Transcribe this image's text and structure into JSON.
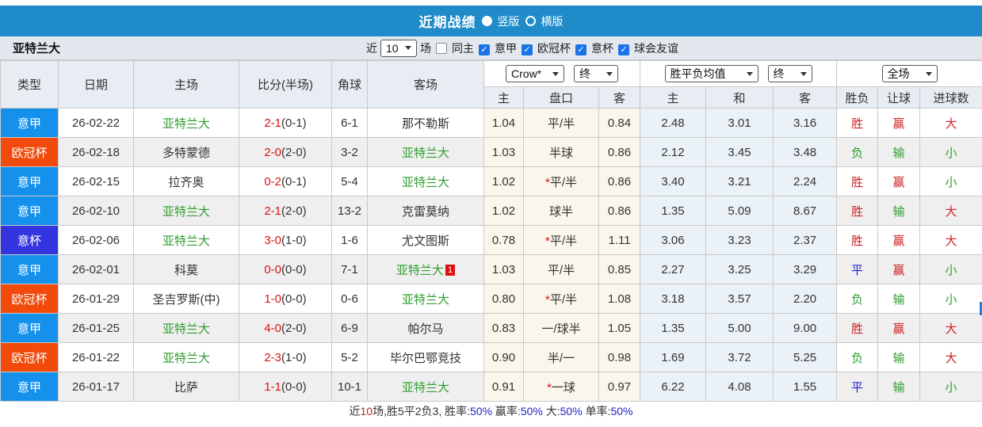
{
  "palette": {
    "red": "#cc2222",
    "green": "#2f9e2f",
    "blue": "#2222cc",
    "dark": "#333333"
  },
  "title_bar": {
    "title": "近期战绩",
    "radios": [
      {
        "label": "竖版",
        "selected": true
      },
      {
        "label": "横版",
        "selected": false
      }
    ]
  },
  "controls": {
    "team": "亚特兰大",
    "near_label": "近",
    "count_value": "10",
    "count_suffix": "场",
    "same_home_label": "同主",
    "same_home_checked": false,
    "league_filters": [
      {
        "label": "意甲",
        "checked": true
      },
      {
        "label": "欧冠杯",
        "checked": true
      },
      {
        "label": "意杯",
        "checked": true
      },
      {
        "label": "球会友谊",
        "checked": true
      }
    ]
  },
  "table": {
    "left_headers": [
      "类型",
      "日期",
      "主场",
      "比分(半场)",
      "角球",
      "客场"
    ],
    "selects": {
      "odds_source": "Crow*",
      "odds_time": "终",
      "avg_source": "胜平负均值",
      "avg_time": "终",
      "scope": "全场"
    },
    "sub_headers": [
      "主",
      "盘口",
      "客",
      "主",
      "和",
      "客",
      "胜负",
      "让球",
      "进球数"
    ],
    "rows": [
      {
        "type": "意甲",
        "type_color": "#1591ec",
        "date": "26-02-22",
        "home": "亚特兰大",
        "home_green": true,
        "score_ft": "2-1",
        "score_ht": "(0-1)",
        "corners": "6-1",
        "away": "那不勒斯",
        "away_green": false,
        "away_badge": "",
        "odds": {
          "home": "1.04",
          "handicap": "平/半",
          "star": false,
          "away": "0.84"
        },
        "avg": [
          "2.48",
          "3.01",
          "3.16"
        ],
        "result_wdl": {
          "text": "胜",
          "color": "red"
        },
        "result_handicap": {
          "text": "赢",
          "color": "red"
        },
        "result_goals": {
          "text": "大",
          "color": "red"
        }
      },
      {
        "type": "欧冠杯",
        "type_color": "#f14a0b",
        "date": "26-02-18",
        "home": "多特蒙德",
        "home_green": false,
        "score_ft": "2-0",
        "score_ht": "(2-0)",
        "corners": "3-2",
        "away": "亚特兰大",
        "away_green": true,
        "away_badge": "",
        "odds": {
          "home": "1.03",
          "handicap": "半球",
          "star": false,
          "away": "0.86"
        },
        "avg": [
          "2.12",
          "3.45",
          "3.48"
        ],
        "result_wdl": {
          "text": "负",
          "color": "green"
        },
        "result_handicap": {
          "text": "输",
          "color": "green"
        },
        "result_goals": {
          "text": "小",
          "color": "green"
        }
      },
      {
        "type": "意甲",
        "type_color": "#1591ec",
        "date": "26-02-15",
        "home": "拉齐奥",
        "home_green": false,
        "score_ft": "0-2",
        "score_ht": "(0-1)",
        "corners": "5-4",
        "away": "亚特兰大",
        "away_green": true,
        "away_badge": "",
        "odds": {
          "home": "1.02",
          "handicap": "平/半",
          "star": true,
          "away": "0.86"
        },
        "avg": [
          "3.40",
          "3.21",
          "2.24"
        ],
        "result_wdl": {
          "text": "胜",
          "color": "red"
        },
        "result_handicap": {
          "text": "赢",
          "color": "red"
        },
        "result_goals": {
          "text": "小",
          "color": "green"
        }
      },
      {
        "type": "意甲",
        "type_color": "#1591ec",
        "date": "26-02-10",
        "home": "亚特兰大",
        "home_green": true,
        "score_ft": "2-1",
        "score_ht": "(2-0)",
        "corners": "13-2",
        "away": "克雷莫纳",
        "away_green": false,
        "away_badge": "",
        "odds": {
          "home": "1.02",
          "handicap": "球半",
          "star": false,
          "away": "0.86"
        },
        "avg": [
          "1.35",
          "5.09",
          "8.67"
        ],
        "result_wdl": {
          "text": "胜",
          "color": "red"
        },
        "result_handicap": {
          "text": "输",
          "color": "green"
        },
        "result_goals": {
          "text": "大",
          "color": "red"
        }
      },
      {
        "type": "意杯",
        "type_color": "#3535e0",
        "date": "26-02-06",
        "home": "亚特兰大",
        "home_green": true,
        "score_ft": "3-0",
        "score_ht": "(1-0)",
        "corners": "1-6",
        "away": "尤文图斯",
        "away_green": false,
        "away_badge": "",
        "odds": {
          "home": "0.78",
          "handicap": "平/半",
          "star": true,
          "away": "1.11"
        },
        "avg": [
          "3.06",
          "3.23",
          "2.37"
        ],
        "result_wdl": {
          "text": "胜",
          "color": "red"
        },
        "result_handicap": {
          "text": "赢",
          "color": "red"
        },
        "result_goals": {
          "text": "大",
          "color": "red"
        }
      },
      {
        "type": "意甲",
        "type_color": "#1591ec",
        "date": "26-02-01",
        "home": "科莫",
        "home_green": false,
        "score_ft": "0-0",
        "score_ht": "(0-0)",
        "corners": "7-1",
        "away": "亚特兰大",
        "away_green": true,
        "away_badge": "1",
        "odds": {
          "home": "1.03",
          "handicap": "平/半",
          "star": false,
          "away": "0.85"
        },
        "avg": [
          "2.27",
          "3.25",
          "3.29"
        ],
        "result_wdl": {
          "text": "平",
          "color": "blue"
        },
        "result_handicap": {
          "text": "赢",
          "color": "red"
        },
        "result_goals": {
          "text": "小",
          "color": "green"
        }
      },
      {
        "type": "欧冠杯",
        "type_color": "#f14a0b",
        "date": "26-01-29",
        "home": "圣吉罗斯(中)",
        "home_green": false,
        "score_ft": "1-0",
        "score_ht": "(0-0)",
        "corners": "0-6",
        "away": "亚特兰大",
        "away_green": true,
        "away_badge": "",
        "odds": {
          "home": "0.80",
          "handicap": "平/半",
          "star": true,
          "away": "1.08"
        },
        "avg": [
          "3.18",
          "3.57",
          "2.20"
        ],
        "result_wdl": {
          "text": "负",
          "color": "green"
        },
        "result_handicap": {
          "text": "输",
          "color": "green"
        },
        "result_goals": {
          "text": "小",
          "color": "green"
        }
      },
      {
        "type": "意甲",
        "type_color": "#1591ec",
        "date": "26-01-25",
        "home": "亚特兰大",
        "home_green": true,
        "score_ft": "4-0",
        "score_ht": "(2-0)",
        "corners": "6-9",
        "away": "帕尔马",
        "away_green": false,
        "away_badge": "",
        "odds": {
          "home": "0.83",
          "handicap": "一/球半",
          "star": false,
          "away": "1.05"
        },
        "avg": [
          "1.35",
          "5.00",
          "9.00"
        ],
        "result_wdl": {
          "text": "胜",
          "color": "red"
        },
        "result_handicap": {
          "text": "赢",
          "color": "red"
        },
        "result_goals": {
          "text": "大",
          "color": "red"
        }
      },
      {
        "type": "欧冠杯",
        "type_color": "#f14a0b",
        "date": "26-01-22",
        "home": "亚特兰大",
        "home_green": true,
        "score_ft": "2-3",
        "score_ht": "(1-0)",
        "corners": "5-2",
        "away": "毕尔巴鄂竞技",
        "away_green": false,
        "away_badge": "",
        "odds": {
          "home": "0.90",
          "handicap": "半/一",
          "star": false,
          "away": "0.98"
        },
        "avg": [
          "1.69",
          "3.72",
          "5.25"
        ],
        "result_wdl": {
          "text": "负",
          "color": "green"
        },
        "result_handicap": {
          "text": "输",
          "color": "green"
        },
        "result_goals": {
          "text": "大",
          "color": "red"
        }
      },
      {
        "type": "意甲",
        "type_color": "#1591ec",
        "date": "26-01-17",
        "home": "比萨",
        "home_green": false,
        "score_ft": "1-1",
        "score_ht": "(0-0)",
        "corners": "10-1",
        "away": "亚特兰大",
        "away_green": true,
        "away_badge": "",
        "odds": {
          "home": "0.91",
          "handicap": "一球",
          "star": true,
          "away": "0.97"
        },
        "avg": [
          "6.22",
          "4.08",
          "1.55"
        ],
        "result_wdl": {
          "text": "平",
          "color": "blue"
        },
        "result_handicap": {
          "text": "输",
          "color": "green"
        },
        "result_goals": {
          "text": "小",
          "color": "green"
        }
      }
    ]
  },
  "footer": {
    "segments": [
      {
        "text": "近",
        "color": "dark"
      },
      {
        "text": "10",
        "color": "red"
      },
      {
        "text": "场,胜5平2负3, 胜率:",
        "color": "dark"
      },
      {
        "text": "50%",
        "color": "blue"
      },
      {
        "text": " 赢率:",
        "color": "dark"
      },
      {
        "text": "50%",
        "color": "blue"
      },
      {
        "text": " 大:",
        "color": "dark"
      },
      {
        "text": "50%",
        "color": "blue"
      },
      {
        "text": " 单率:",
        "color": "dark"
      },
      {
        "text": "50%",
        "color": "blue"
      }
    ]
  }
}
